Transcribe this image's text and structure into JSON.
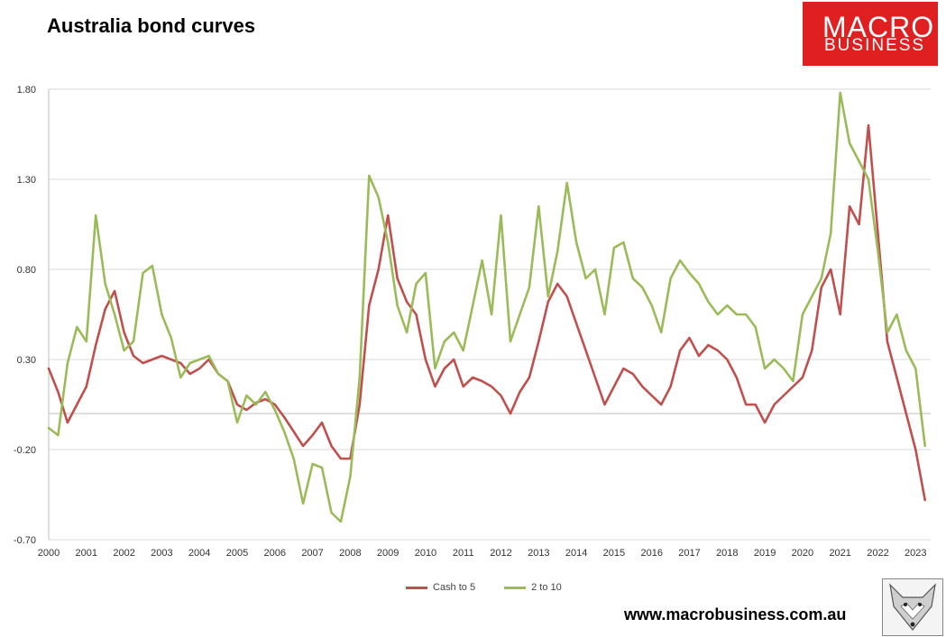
{
  "logo": {
    "line1": "MACRO",
    "line2": "BUSINESS"
  },
  "footer": {
    "url": "www.macrobusiness.com.au"
  },
  "colors": {
    "cash_to_5": "#c0504d",
    "two_to_10": "#9bbb59",
    "grid": "#d9d9d9",
    "axis_text": "#333333"
  },
  "chart_data": {
    "type": "line",
    "title": "Australia bond curves",
    "xlabel": "",
    "ylabel": "",
    "ylim": [
      -0.7,
      1.8
    ],
    "yticks": [
      -0.7,
      -0.2,
      0.3,
      0.8,
      1.3,
      1.8
    ],
    "ytick_labels": [
      "-0.70",
      "-0.20",
      "0.30",
      "0.80",
      "1.30",
      "1.80"
    ],
    "xlim": [
      2000,
      2023.4
    ],
    "xticks": [
      "2000",
      "2001",
      "2002",
      "2003",
      "2004",
      "2005",
      "2006",
      "2007",
      "2008",
      "2009",
      "2010",
      "2011",
      "2012",
      "2013",
      "2014",
      "2015",
      "2016",
      "2017",
      "2018",
      "2019",
      "2020",
      "2021",
      "2022",
      "2023"
    ],
    "grid": true,
    "legend_position": "bottom",
    "series": [
      {
        "name": "Cash to 5",
        "color": "#c0504d",
        "x": [
          2000.0,
          2000.25,
          2000.5,
          2000.75,
          2001.0,
          2001.25,
          2001.5,
          2001.75,
          2002.0,
          2002.25,
          2002.5,
          2002.75,
          2003.0,
          2003.25,
          2003.5,
          2003.75,
          2004.0,
          2004.25,
          2004.5,
          2004.75,
          2005.0,
          2005.25,
          2005.5,
          2005.75,
          2006.0,
          2006.25,
          2006.5,
          2006.75,
          2007.0,
          2007.25,
          2007.5,
          2007.75,
          2008.0,
          2008.25,
          2008.5,
          2008.75,
          2009.0,
          2009.25,
          2009.5,
          2009.75,
          2010.0,
          2010.25,
          2010.5,
          2010.75,
          2011.0,
          2011.25,
          2011.5,
          2011.75,
          2012.0,
          2012.25,
          2012.5,
          2012.75,
          2013.0,
          2013.25,
          2013.5,
          2013.75,
          2014.0,
          2014.25,
          2014.5,
          2014.75,
          2015.0,
          2015.25,
          2015.5,
          2015.75,
          2016.0,
          2016.25,
          2016.5,
          2016.75,
          2017.0,
          2017.25,
          2017.5,
          2017.75,
          2018.0,
          2018.25,
          2018.5,
          2018.75,
          2019.0,
          2019.25,
          2019.5,
          2019.75,
          2020.0,
          2020.25,
          2020.5,
          2020.75,
          2021.0,
          2021.25,
          2021.5,
          2021.75,
          2022.0,
          2022.25,
          2022.5,
          2022.75,
          2023.0,
          2023.25
        ],
        "values": [
          0.25,
          0.12,
          -0.05,
          0.05,
          0.15,
          0.38,
          0.58,
          0.68,
          0.45,
          0.32,
          0.28,
          0.3,
          0.32,
          0.3,
          0.28,
          0.22,
          0.25,
          0.3,
          0.22,
          0.18,
          0.05,
          0.02,
          0.06,
          0.08,
          0.05,
          -0.02,
          -0.1,
          -0.18,
          -0.12,
          -0.05,
          -0.18,
          -0.25,
          -0.25,
          0.05,
          0.6,
          0.8,
          1.1,
          0.75,
          0.62,
          0.55,
          0.3,
          0.15,
          0.25,
          0.3,
          0.15,
          0.2,
          0.18,
          0.15,
          0.1,
          0.0,
          0.12,
          0.2,
          0.4,
          0.62,
          0.72,
          0.65,
          0.5,
          0.35,
          0.2,
          0.05,
          0.15,
          0.25,
          0.22,
          0.15,
          0.1,
          0.05,
          0.15,
          0.35,
          0.42,
          0.32,
          0.38,
          0.35,
          0.3,
          0.2,
          0.05,
          0.05,
          -0.05,
          0.05,
          0.1,
          0.15,
          0.2,
          0.35,
          0.7,
          0.8,
          0.55,
          1.15,
          1.05,
          1.6,
          1.0,
          0.4,
          0.2,
          0.0,
          -0.2,
          -0.48
        ]
      },
      {
        "name": "2 to 10",
        "color": "#9bbb59",
        "x": [
          2000.0,
          2000.25,
          2000.5,
          2000.75,
          2001.0,
          2001.25,
          2001.5,
          2001.75,
          2002.0,
          2002.25,
          2002.5,
          2002.75,
          2003.0,
          2003.25,
          2003.5,
          2003.75,
          2004.0,
          2004.25,
          2004.5,
          2004.75,
          2005.0,
          2005.25,
          2005.5,
          2005.75,
          2006.0,
          2006.25,
          2006.5,
          2006.75,
          2007.0,
          2007.25,
          2007.5,
          2007.75,
          2008.0,
          2008.25,
          2008.5,
          2008.75,
          2009.0,
          2009.25,
          2009.5,
          2009.75,
          2010.0,
          2010.25,
          2010.5,
          2010.75,
          2011.0,
          2011.25,
          2011.5,
          2011.75,
          2012.0,
          2012.25,
          2012.5,
          2012.75,
          2013.0,
          2013.25,
          2013.5,
          2013.75,
          2014.0,
          2014.25,
          2014.5,
          2014.75,
          2015.0,
          2015.25,
          2015.5,
          2015.75,
          2016.0,
          2016.25,
          2016.5,
          2016.75,
          2017.0,
          2017.25,
          2017.5,
          2017.75,
          2018.0,
          2018.25,
          2018.5,
          2018.75,
          2019.0,
          2019.25,
          2019.5,
          2019.75,
          2020.0,
          2020.25,
          2020.5,
          2020.75,
          2021.0,
          2021.25,
          2021.5,
          2021.75,
          2022.0,
          2022.25,
          2022.5,
          2022.75,
          2023.0,
          2023.25
        ],
        "values": [
          -0.08,
          -0.12,
          0.28,
          0.48,
          0.4,
          1.1,
          0.72,
          0.55,
          0.35,
          0.4,
          0.78,
          0.82,
          0.55,
          0.42,
          0.2,
          0.28,
          0.3,
          0.32,
          0.22,
          0.18,
          -0.05,
          0.1,
          0.05,
          0.12,
          0.02,
          -0.1,
          -0.25,
          -0.5,
          -0.28,
          -0.3,
          -0.55,
          -0.6,
          -0.35,
          0.2,
          1.32,
          1.2,
          0.95,
          0.6,
          0.45,
          0.72,
          0.78,
          0.25,
          0.4,
          0.45,
          0.35,
          0.6,
          0.85,
          0.55,
          1.1,
          0.4,
          0.55,
          0.7,
          1.15,
          0.65,
          0.9,
          1.28,
          0.95,
          0.75,
          0.8,
          0.55,
          0.92,
          0.95,
          0.75,
          0.7,
          0.6,
          0.45,
          0.75,
          0.85,
          0.78,
          0.72,
          0.62,
          0.55,
          0.6,
          0.55,
          0.55,
          0.48,
          0.25,
          0.3,
          0.25,
          0.18,
          0.55,
          0.65,
          0.75,
          1.0,
          1.78,
          1.5,
          1.4,
          1.3,
          0.9,
          0.45,
          0.55,
          0.35,
          0.25,
          -0.18
        ]
      }
    ]
  }
}
